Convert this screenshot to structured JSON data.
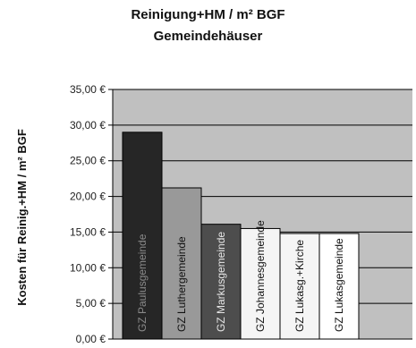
{
  "title_line_1": "Reinigung+HM / m² BGF",
  "title_line_2": "Gemeindehäuser",
  "chart_data": {
    "type": "bar",
    "title": "Reinigung+HM / m² BGF Gemeindehäuser",
    "ylabel": "Kosten für Reinig.+HM / m² BGF",
    "xlabel": "",
    "categories": [
      "GZ Paulusgemeinde",
      "GZ Luthergemeinde",
      "GZ Markusgemeinde",
      "GZ Johannesgemeinde",
      "GZ Lukasg.+Kirche",
      "GZ Lukasgemeinde"
    ],
    "values": [
      29.0,
      21.2,
      16.1,
      15.5,
      14.8,
      14.8
    ],
    "ylim": [
      0,
      35
    ],
    "yticks": [
      0,
      5,
      10,
      15,
      20,
      25,
      30,
      35
    ],
    "ytick_labels": [
      "0,00 €",
      "5,00 €",
      "10,00 €",
      "15,00 €",
      "20,00 €",
      "25,00 €",
      "30,00 €",
      "35,00 €"
    ],
    "grid": true,
    "legend": "none",
    "colors": {
      "plot_background": "#c0c0c0",
      "gridline": "#000000",
      "bar_fills": [
        "#262626",
        "#999999",
        "#4d4d4d",
        "#f5f5f5",
        "#f5f5f5",
        "#ffffff"
      ],
      "bar_label_colors": [
        "#8a8a8a",
        "#111111",
        "#e6e6e6",
        "#111111",
        "#111111",
        "#111111"
      ]
    }
  }
}
